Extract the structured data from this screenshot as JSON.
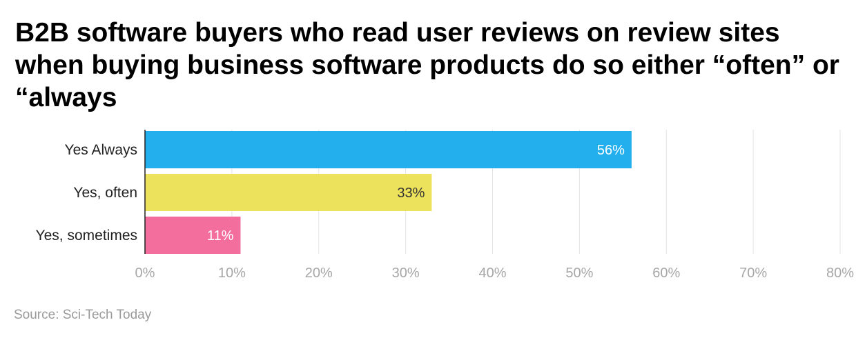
{
  "chart_data": {
    "type": "bar",
    "orientation": "horizontal",
    "title": "B2B software buyers who read user reviews on review sites when buying business software products do so either “often” or “always",
    "categories": [
      "Yes Always",
      "Yes, often",
      "Yes, sometimes"
    ],
    "values": [
      56,
      33,
      11
    ],
    "value_labels": [
      "56%",
      "33%",
      "11%"
    ],
    "colors": [
      "#23aeee",
      "#ece25c",
      "#f36d9d"
    ],
    "label_colors": [
      "#ffffff",
      "#333333",
      "#ffffff"
    ],
    "xlim": [
      0,
      80
    ],
    "xticks": [
      0,
      10,
      20,
      30,
      40,
      50,
      60,
      70,
      80
    ],
    "xtick_labels": [
      "0%",
      "10%",
      "20%",
      "30%",
      "40%",
      "50%",
      "60%",
      "70%",
      "80%"
    ],
    "grid": true,
    "source": "Source: Sci-Tech Today"
  }
}
